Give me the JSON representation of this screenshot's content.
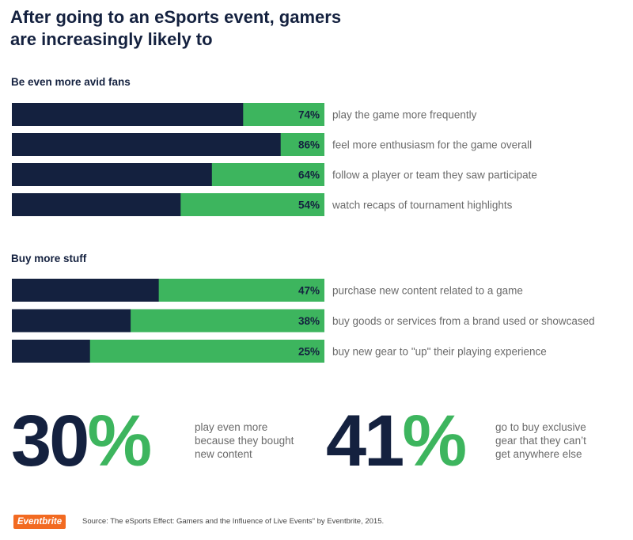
{
  "title": {
    "line1": "After going to an eSports event, gamers",
    "line2": "are increasingly likely to"
  },
  "colors": {
    "navy": "#14213f",
    "green": "#3db55e",
    "text_gray": "#6b6b6b",
    "logo_orange": "#f26a21"
  },
  "chart_data": [
    {
      "type": "bar",
      "orientation": "horizontal",
      "stacked_percent": true,
      "title": "Be even more avid fans",
      "categories": [
        "play the game more frequently",
        "feel more enthusiasm for the game overall",
        "follow a player or team they saw participate",
        "watch recaps of tournament highlights"
      ],
      "values": [
        74,
        86,
        64,
        54
      ],
      "value_labels": [
        "74%",
        "86%",
        "64%",
        "54%"
      ],
      "xlim": [
        0,
        100
      ]
    },
    {
      "type": "bar",
      "orientation": "horizontal",
      "stacked_percent": true,
      "title": "Buy more stuff",
      "categories": [
        "purchase new content related to a game",
        "buy goods or services from a brand used or showcased",
        "buy new gear to \"up\" their playing experience"
      ],
      "values": [
        47,
        38,
        25
      ],
      "value_labels": [
        "47%",
        "38%",
        "25%"
      ],
      "xlim": [
        0,
        100
      ]
    }
  ],
  "stats": [
    {
      "number": "30",
      "percent_sign": "%",
      "lines": [
        "play even more",
        "because they bought",
        "new content"
      ]
    },
    {
      "number": "41",
      "percent_sign": "%",
      "lines": [
        "go to buy exclusive",
        "gear that they can’t",
        "get anywhere else"
      ]
    }
  ],
  "footer": {
    "logo_text": "Eventbrite",
    "source": "Source: The eSports Effect: Gamers and the Influence of Live Events\" by Eventbrite, 2015."
  }
}
